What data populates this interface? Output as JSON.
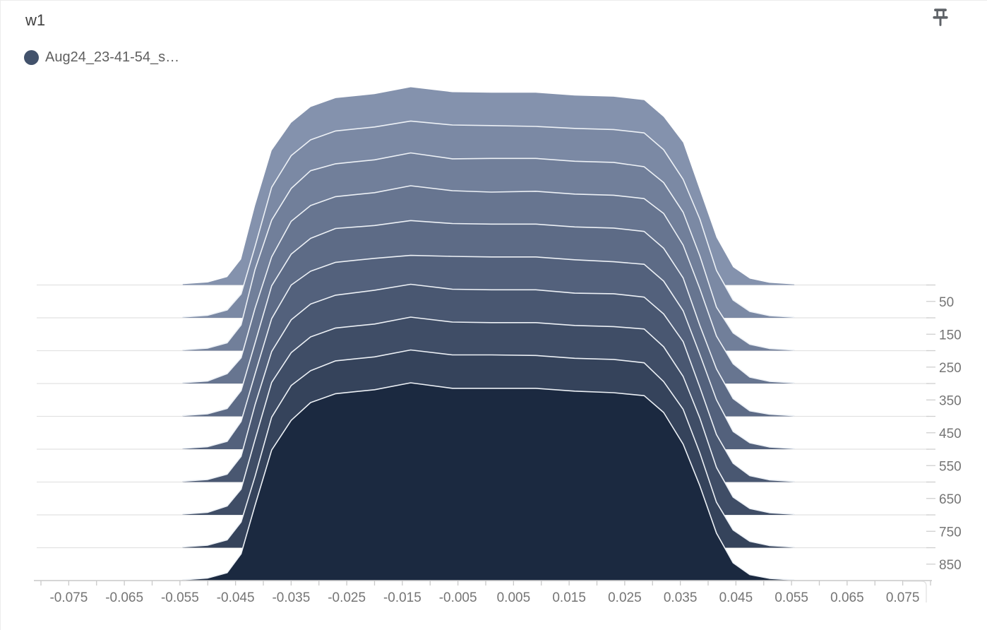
{
  "card": {
    "title": "w1"
  },
  "legend": {
    "label": "Aug24_23-41-54_s…",
    "color": "#42526b"
  },
  "pin": {
    "icon": "pushpin-icon",
    "color": "#5f6368"
  },
  "chart_data": {
    "type": "area",
    "variant": "ridgeline_histogram_offset",
    "title": "w1",
    "series_name": "Aug24_23-41-54_s…",
    "x_range": [
      -0.08,
      0.08
    ],
    "x_tick_interval": 0.005,
    "x_tick_labels": [
      "-0.075",
      "-0.065",
      "-0.055",
      "-0.045",
      "-0.035",
      "-0.025",
      "-0.015",
      "-0.005",
      "0.005",
      "0.015",
      "0.025",
      "0.035",
      "0.045",
      "0.055",
      "0.065",
      "0.075"
    ],
    "step_axis_position": "right",
    "step_range": [
      0,
      900
    ],
    "step_tick_interval": 50,
    "step_tick_labels": [
      "50",
      "150",
      "250",
      "350",
      "450",
      "550",
      "650",
      "750",
      "850"
    ],
    "steps": [
      0,
      100,
      200,
      300,
      400,
      500,
      600,
      700,
      800,
      900
    ],
    "x_knots": [
      -0.0545,
      -0.05,
      -0.0465,
      -0.044,
      -0.0415,
      -0.0385,
      -0.035,
      -0.0315,
      -0.027,
      -0.02,
      -0.0135,
      -0.006,
      0.001,
      0.009,
      0.016,
      0.023,
      0.0285,
      0.032,
      0.0355,
      0.0385,
      0.0415,
      0.0445,
      0.0475,
      0.051,
      0.0555
    ],
    "height_normalized": true,
    "profiles": [
      [
        0.004,
        0.013,
        0.04,
        0.13,
        0.4,
        0.68,
        0.82,
        0.9,
        0.945,
        0.965,
        1.0,
        0.975,
        0.972,
        0.972,
        0.958,
        0.952,
        0.935,
        0.85,
        0.72,
        0.48,
        0.24,
        0.09,
        0.032,
        0.011,
        0.003
      ],
      [
        0.004,
        0.013,
        0.04,
        0.12,
        0.36,
        0.66,
        0.82,
        0.9,
        0.945,
        0.965,
        0.995,
        0.975,
        0.972,
        0.968,
        0.958,
        0.952,
        0.935,
        0.85,
        0.7,
        0.5,
        0.24,
        0.09,
        0.032,
        0.011,
        0.003
      ],
      [
        0.004,
        0.013,
        0.04,
        0.13,
        0.41,
        0.66,
        0.82,
        0.91,
        0.945,
        0.965,
        1.0,
        0.97,
        0.972,
        0.972,
        0.958,
        0.952,
        0.93,
        0.85,
        0.7,
        0.48,
        0.22,
        0.09,
        0.032,
        0.011,
        0.003
      ],
      [
        0.004,
        0.013,
        0.05,
        0.13,
        0.38,
        0.64,
        0.82,
        0.9,
        0.945,
        0.965,
        1.0,
        0.975,
        0.968,
        0.972,
        0.958,
        0.952,
        0.935,
        0.86,
        0.7,
        0.48,
        0.24,
        0.1,
        0.032,
        0.011,
        0.003
      ],
      [
        0.004,
        0.013,
        0.04,
        0.13,
        0.37,
        0.66,
        0.82,
        0.9,
        0.95,
        0.965,
        0.99,
        0.975,
        0.972,
        0.972,
        0.958,
        0.952,
        0.935,
        0.85,
        0.7,
        0.46,
        0.24,
        0.09,
        0.028,
        0.011,
        0.003
      ],
      [
        0.004,
        0.013,
        0.04,
        0.14,
        0.38,
        0.66,
        0.83,
        0.9,
        0.945,
        0.965,
        0.98,
        0.975,
        0.972,
        0.972,
        0.958,
        0.948,
        0.935,
        0.85,
        0.7,
        0.48,
        0.25,
        0.09,
        0.032,
        0.011,
        0.003
      ],
      [
        0.004,
        0.013,
        0.04,
        0.13,
        0.39,
        0.66,
        0.82,
        0.9,
        0.945,
        0.97,
        1.0,
        0.975,
        0.972,
        0.972,
        0.955,
        0.952,
        0.935,
        0.85,
        0.71,
        0.48,
        0.24,
        0.095,
        0.032,
        0.011,
        0.003
      ],
      [
        0.004,
        0.013,
        0.045,
        0.13,
        0.38,
        0.67,
        0.82,
        0.9,
        0.945,
        0.965,
        1.0,
        0.975,
        0.972,
        0.972,
        0.958,
        0.952,
        0.94,
        0.85,
        0.7,
        0.49,
        0.24,
        0.09,
        0.032,
        0.011,
        0.003
      ],
      [
        0.004,
        0.013,
        0.04,
        0.13,
        0.36,
        0.66,
        0.82,
        0.895,
        0.945,
        0.965,
        1.0,
        0.975,
        0.975,
        0.972,
        0.958,
        0.952,
        0.935,
        0.84,
        0.7,
        0.48,
        0.23,
        0.09,
        0.032,
        0.011,
        0.003
      ],
      [
        0.004,
        0.013,
        0.04,
        0.135,
        0.38,
        0.66,
        0.81,
        0.9,
        0.945,
        0.965,
        1.0,
        0.972,
        0.972,
        0.972,
        0.958,
        0.95,
        0.935,
        0.85,
        0.69,
        0.48,
        0.24,
        0.09,
        0.03,
        0.011,
        0.003
      ]
    ],
    "colors": {
      "ridges": [
        "#8492ad",
        "#7b89a4",
        "#717f9a",
        "#677590",
        "#5d6b86",
        "#53617c",
        "#495771",
        "#3f4d66",
        "#35435b",
        "#1b2940"
      ],
      "outline": "#edf1f6",
      "gridline": "#e2e2e2",
      "axis": "#c9c9c9",
      "tick": "#cfcfcf",
      "tick_label": "#757575"
    }
  }
}
